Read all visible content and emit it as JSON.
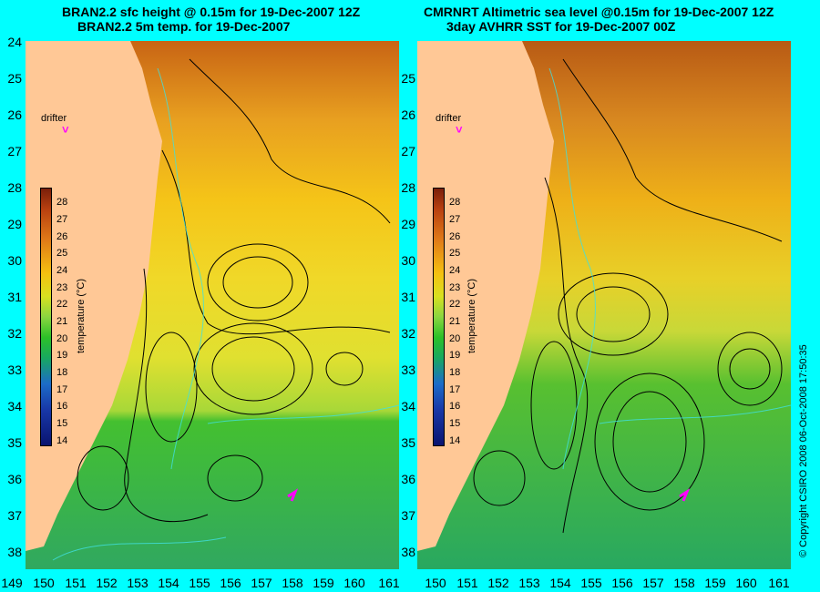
{
  "left_panel": {
    "title_line1": "BRAN2.2 sfc height @ 0.15m for 19-Dec-2007 12Z",
    "title_line2": "BRAN2.2 5m temp. for 19-Dec-2007",
    "drifter_label": "drifter",
    "drifter_marker": "˅"
  },
  "right_panel": {
    "title_line1": "CMRNRT Altimetric sea level  @0.15m  for 19-Dec-2007 12Z",
    "title_line2": "3day AVHRR SST for 19-Dec-2007 00Z",
    "drifter_label": "drifter",
    "drifter_marker": "˅"
  },
  "y_axis_ticks": [
    "24",
    "25",
    "26",
    "27",
    "28",
    "29",
    "30",
    "31",
    "32",
    "33",
    "34",
    "35",
    "36",
    "37",
    "38"
  ],
  "x_axis_ticks": [
    "149",
    "150",
    "151",
    "152",
    "153",
    "154",
    "155",
    "156",
    "157",
    "158",
    "159",
    "160",
    "161"
  ],
  "colorbar": {
    "label": "temperature (°C)",
    "ticks": [
      "28",
      "27",
      "26",
      "25",
      "24",
      "23",
      "22",
      "21",
      "20",
      "19",
      "18",
      "17",
      "16",
      "15",
      "14"
    ]
  },
  "copyright": "© Copyright CSIRO 2008   06-Oct-2008 17:50:35",
  "colors": {
    "background": "#00ffff",
    "land": "#ffc896",
    "drifter": "#ff00ff",
    "contour": "#000000",
    "secondary_contour": "#40e0e0"
  }
}
